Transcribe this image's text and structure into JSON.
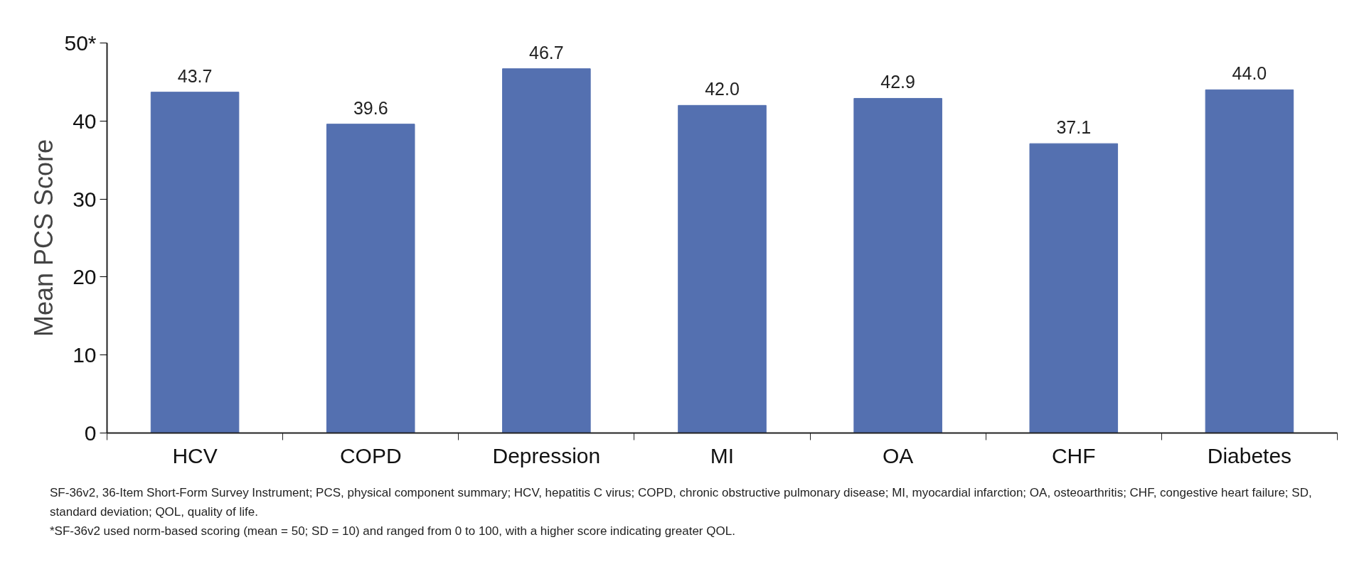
{
  "chart_data": {
    "type": "bar",
    "ylabel": "Mean PCS Score",
    "categories": [
      "HCV",
      "COPD",
      "Depression",
      "MI",
      "OA",
      "CHF",
      "Diabetes"
    ],
    "values": [
      43.7,
      39.6,
      46.7,
      42.0,
      42.9,
      37.1,
      44.0
    ],
    "value_labels": [
      "43.7",
      "39.6",
      "46.7",
      "42.0",
      "42.9",
      "37.1",
      "44.0"
    ],
    "color": "#5470b0",
    "ylim": [
      0,
      50
    ],
    "yticks": [
      0,
      10,
      20,
      30,
      40,
      {
        "value": 50,
        "label": "50*"
      }
    ],
    "grid": false,
    "annotations": [
      "SF-36v2, 36-Item Short-Form Survey Instrument; PCS, physical component summary; HCV, hepatitis C virus; COPD, chronic obstructive pulmonary disease; MI, myocardial infarction; OA, osteoarthritis; CHF, congestive heart failure; SD, standard deviation; QOL, quality of life.",
      "*SF-36v2 used norm-based scoring (mean = 50; SD = 10) and ranged from 0 to 100, with a higher score indicating greater QOL."
    ]
  }
}
